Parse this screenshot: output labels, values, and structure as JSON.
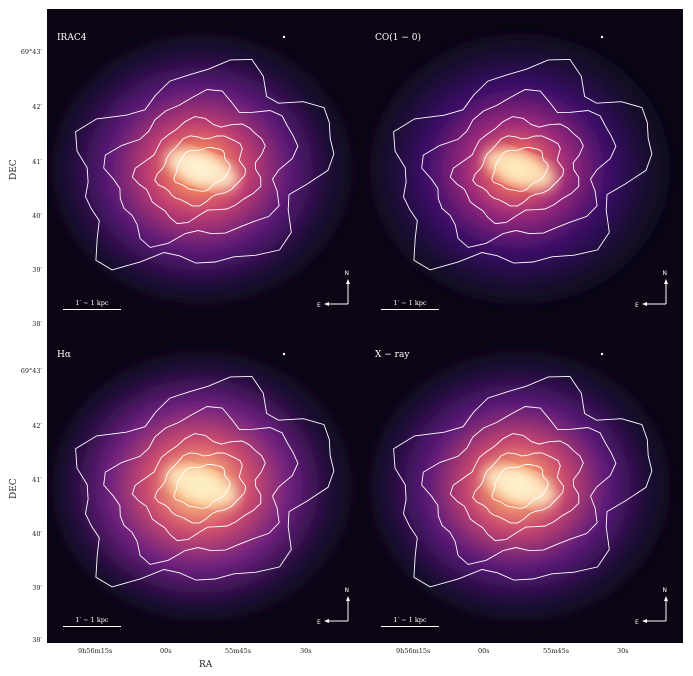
{
  "panels": [
    {
      "label": "IRAC4",
      "palette": [
        "#fff8d8",
        "#f58a5a",
        "#c23d71",
        "#5a1a78",
        "#1a0a33",
        "#0b0514"
      ]
    },
    {
      "label": "CO(1 − 0)",
      "palette": [
        "#fff1c0",
        "#f06a5a",
        "#a02a7c",
        "#3c0f6a",
        "#160a2c",
        "#0b0514"
      ]
    },
    {
      "label": "Hα",
      "palette": [
        "#fff2c8",
        "#f8b27a",
        "#d24e6c",
        "#6c2080",
        "#1c0b35",
        "#0b0514"
      ]
    },
    {
      "label": "X − ray",
      "palette": [
        "#fff5d0",
        "#f7a06e",
        "#c8456e",
        "#5a1a7a",
        "#1a0a33",
        "#0b0514"
      ]
    }
  ],
  "scale_bar": "1′ ∼ 1 kpc",
  "compass": {
    "north": "N",
    "east": "E"
  },
  "axes": {
    "xlabel": "RA",
    "ylabel": "DEC",
    "xticks": [
      "9h56m15s",
      "00s",
      "55m45s",
      "30s"
    ],
    "yticks": [
      "69°43′",
      "42′",
      "41′",
      "40′",
      "39′",
      "38′"
    ]
  },
  "colors": {
    "contour": "#ffffff",
    "background": "#0b0514"
  }
}
